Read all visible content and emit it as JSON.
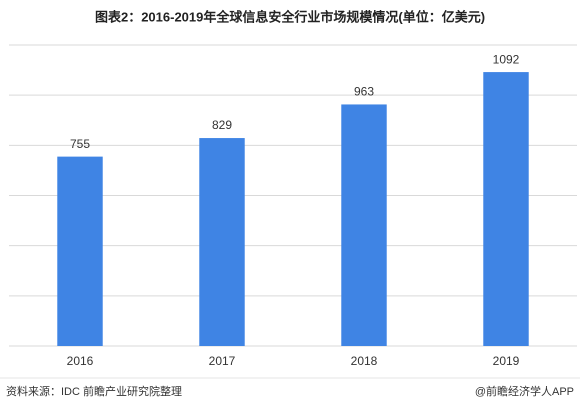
{
  "chart_data": {
    "type": "bar",
    "title": "图表2：2016-2019年全球信息安全行业市场规模情况(单位：亿美元)",
    "categories": [
      "2016",
      "2017",
      "2018",
      "2019"
    ],
    "values": [
      755,
      829,
      963,
      1092
    ],
    "color": "#3f84e4",
    "ylim": [
      0,
      1200
    ],
    "yticks": [
      0,
      200,
      400,
      600,
      800,
      1000,
      1200
    ],
    "grid": true,
    "source": "资料来源：IDC 前瞻产业研究院整理",
    "credit": "@前瞻经济学人APP"
  }
}
